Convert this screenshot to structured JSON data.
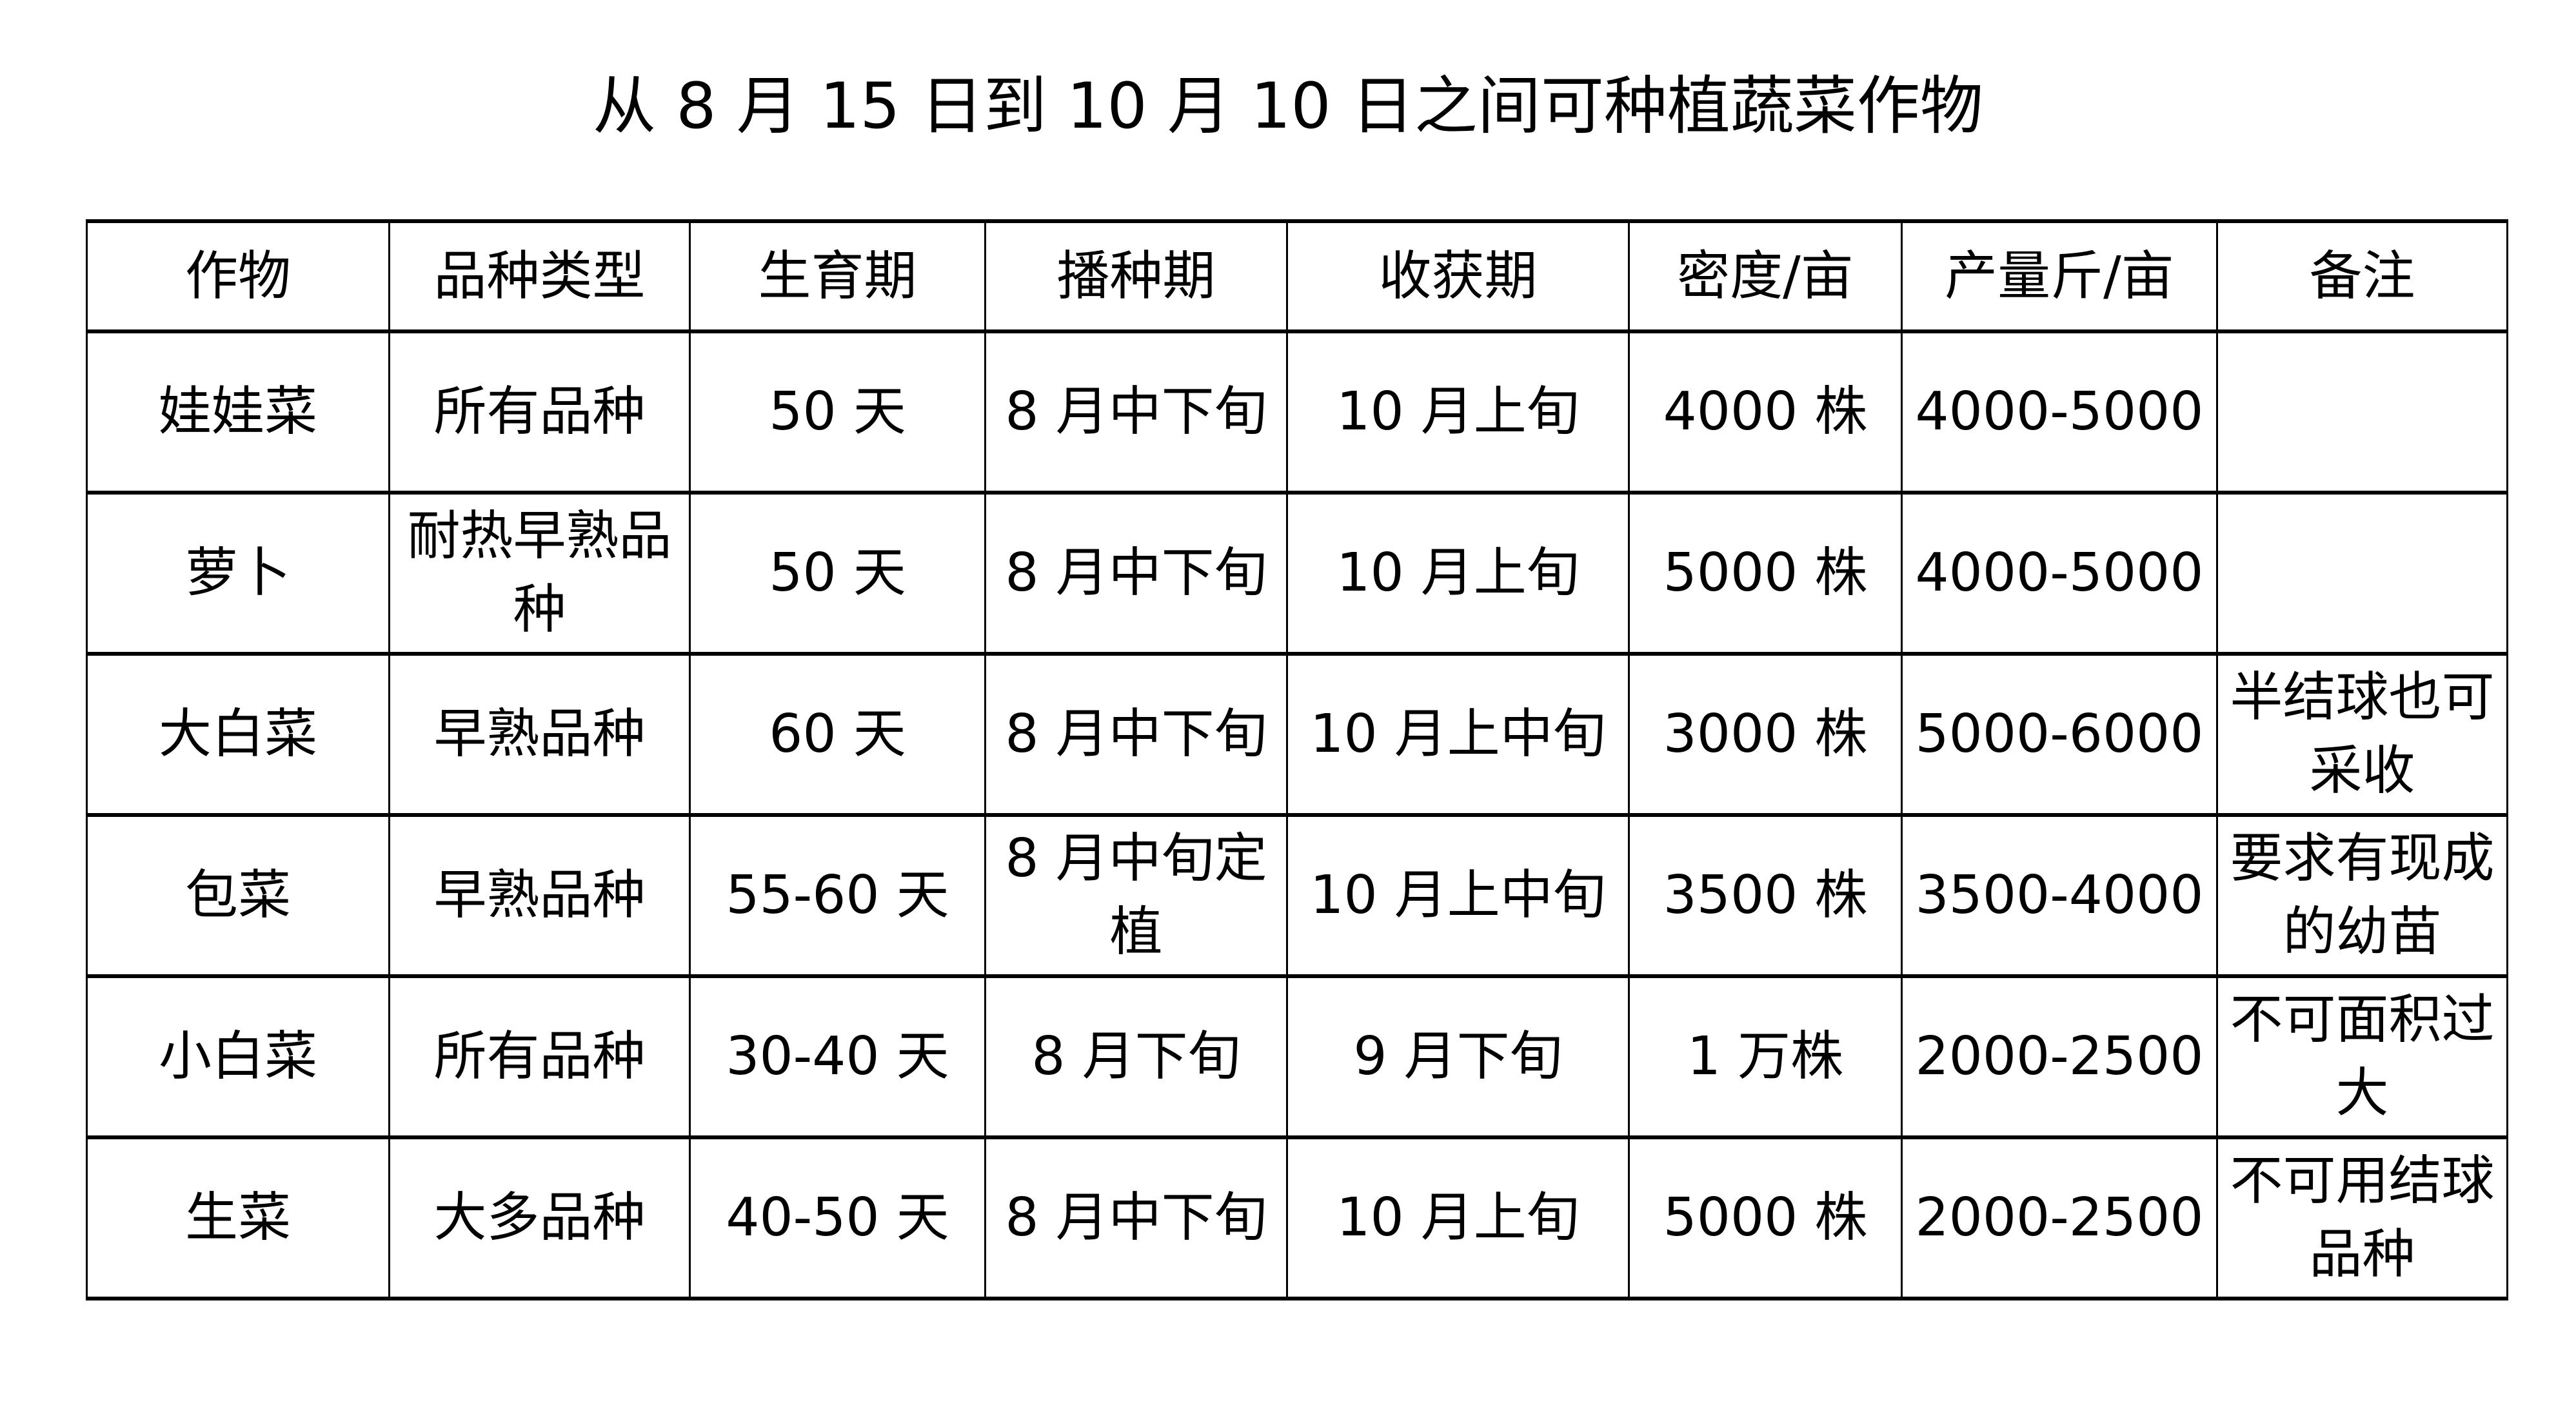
{
  "title": "从 8 月 15 日到 10 月 10 日之间可种植蔬菜作物",
  "table": {
    "headers": [
      "作物",
      "品种类型",
      "生育期",
      "播种期",
      "收获期",
      "密度/亩",
      "产量斤/亩",
      "备注"
    ],
    "rows": [
      [
        "娃娃菜",
        "所有品种",
        "50 天",
        "8 月中下旬",
        "10 月上旬",
        "4000 株",
        "4000-5000",
        ""
      ],
      [
        "萝卜",
        "耐热早熟品种",
        "50 天",
        "8 月中下旬",
        "10 月上旬",
        "5000 株",
        "4000-5000",
        ""
      ],
      [
        "大白菜",
        "早熟品种",
        "60 天",
        "8 月中下旬",
        "10 月上中旬",
        "3000 株",
        "5000-6000",
        "半结球也可采收"
      ],
      [
        "包菜",
        "早熟品种",
        "55-60 天",
        "8 月中旬定植",
        "10 月上中旬",
        "3500 株",
        "3500-4000",
        "要求有现成的幼苗"
      ],
      [
        "小白菜",
        "所有品种",
        "30-40 天",
        "8 月下旬",
        "9 月下旬",
        "1 万株",
        "2000-2500",
        "不可面积过大"
      ],
      [
        "生菜",
        "大多品种",
        "40-50 天",
        "8 月中下旬",
        "10 月上旬",
        "5000 株",
        "2000-2500",
        "不可用结球品种"
      ]
    ]
  }
}
